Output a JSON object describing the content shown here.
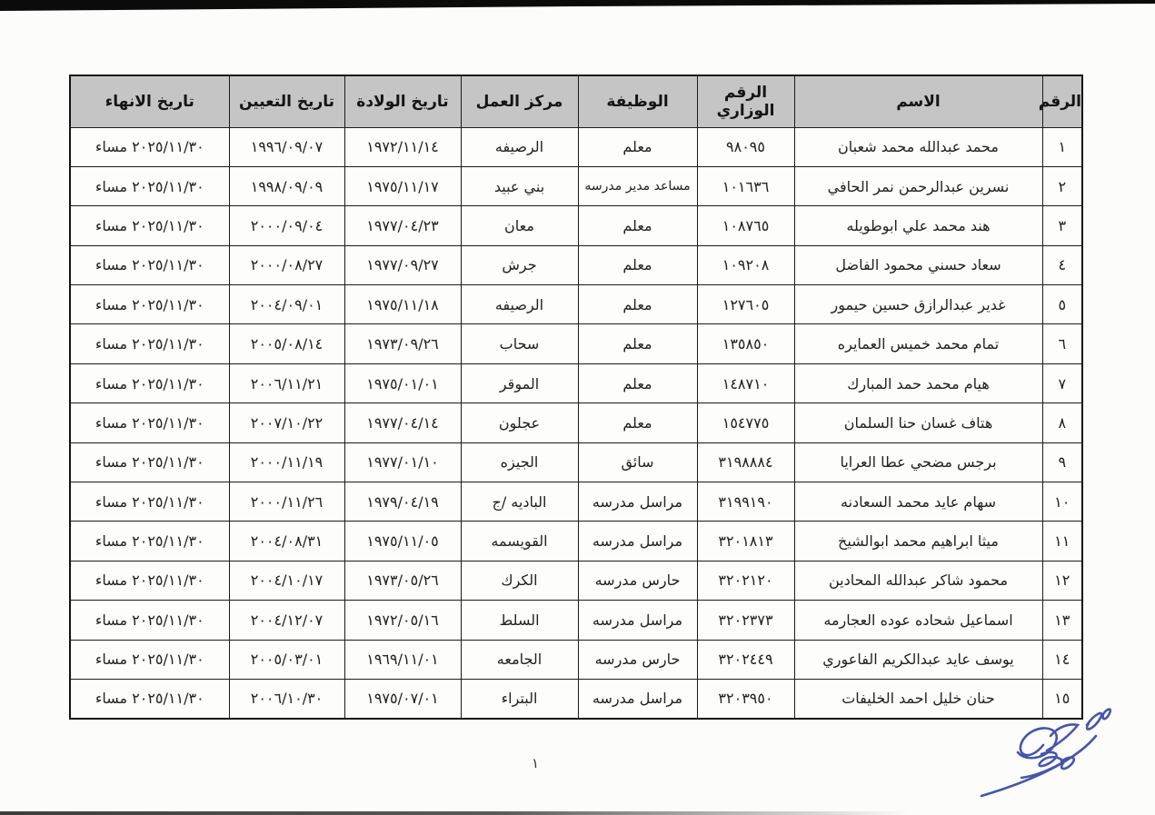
{
  "document": {
    "language": "ar",
    "direction": "rtl",
    "page_number": "١"
  },
  "colors": {
    "header_bg": "#c5c5c5",
    "border": "#1b1b1b",
    "page_bg": "#fcfcfa",
    "signature_ink": "#3747a5",
    "scan_edge": "#0b0b0b"
  },
  "table": {
    "columns": [
      {
        "key": "seq",
        "label": "الرقم"
      },
      {
        "key": "name",
        "label": "الاسم"
      },
      {
        "key": "ministry_number",
        "label": "الرقم الوزاري"
      },
      {
        "key": "job",
        "label": "الوظيفة"
      },
      {
        "key": "work_center",
        "label": "مركز العمل"
      },
      {
        "key": "birth_date",
        "label": "تاريخ الولادة"
      },
      {
        "key": "hire_date",
        "label": "تاريخ التعيين"
      },
      {
        "key": "end_date",
        "label": "تاريخ الانهاء"
      }
    ],
    "rows": [
      {
        "seq": "١",
        "name": "محمد عبدالله محمد شعبان",
        "ministry_number": "٩٨٠٩٥",
        "job": "معلم",
        "work_center": "الرصيفه",
        "birth_date": "١٩٧٢/١١/١٤",
        "hire_date": "١٩٩٦/٠٩/٠٧",
        "end_date": "٢٠٢٥/١١/٣٠ مساء"
      },
      {
        "seq": "٢",
        "name": "نسرين عبدالرحمن نمر الحافي",
        "ministry_number": "١٠١٦٣٦",
        "job": "مساعد مدير مدرسه",
        "work_center": "بني عبيد",
        "birth_date": "١٩٧٥/١١/١٧",
        "hire_date": "١٩٩٨/٠٩/٠٩",
        "end_date": "٢٠٢٥/١١/٣٠ مساء"
      },
      {
        "seq": "٣",
        "name": "هند محمد علي ابوطويله",
        "ministry_number": "١٠٨٧٦٥",
        "job": "معلم",
        "work_center": "معان",
        "birth_date": "١٩٧٧/٠٤/٢٣",
        "hire_date": "٢٠٠٠/٠٩/٠٤",
        "end_date": "٢٠٢٥/١١/٣٠ مساء"
      },
      {
        "seq": "٤",
        "name": "سعاد حسني محمود الفاضل",
        "ministry_number": "١٠٩٢٠٨",
        "job": "معلم",
        "work_center": "جرش",
        "birth_date": "١٩٧٧/٠٩/٢٧",
        "hire_date": "٢٠٠٠/٠٨/٢٧",
        "end_date": "٢٠٢٥/١١/٣٠ مساء"
      },
      {
        "seq": "٥",
        "name": "غدير عبدالرازق حسين حيمور",
        "ministry_number": "١٢٧٦٠٥",
        "job": "معلم",
        "work_center": "الرصيفه",
        "birth_date": "١٩٧٥/١١/١٨",
        "hire_date": "٢٠٠٤/٠٩/٠١",
        "end_date": "٢٠٢٥/١١/٣٠ مساء"
      },
      {
        "seq": "٦",
        "name": "تمام محمد خميس العمايره",
        "ministry_number": "١٣٥٨٥٠",
        "job": "معلم",
        "work_center": "سحاب",
        "birth_date": "١٩٧٣/٠٩/٢٦",
        "hire_date": "٢٠٠٥/٠٨/١٤",
        "end_date": "٢٠٢٥/١١/٣٠ مساء"
      },
      {
        "seq": "٧",
        "name": "هيام محمد حمد المبارك",
        "ministry_number": "١٤٨٧١٠",
        "job": "معلم",
        "work_center": "الموقر",
        "birth_date": "١٩٧٥/٠١/٠١",
        "hire_date": "٢٠٠٦/١١/٢١",
        "end_date": "٢٠٢٥/١١/٣٠ مساء"
      },
      {
        "seq": "٨",
        "name": "هتاف غسان حنا السلمان",
        "ministry_number": "١٥٤٧٧٥",
        "job": "معلم",
        "work_center": "عجلون",
        "birth_date": "١٩٧٧/٠٤/١٤",
        "hire_date": "٢٠٠٧/١٠/٢٢",
        "end_date": "٢٠٢٥/١١/٣٠ مساء"
      },
      {
        "seq": "٩",
        "name": "برجس مضحي عطا العرايا",
        "ministry_number": "٣١٩٨٨٨٤",
        "job": "سائق",
        "work_center": "الجيزه",
        "birth_date": "١٩٧٧/٠١/١٠",
        "hire_date": "٢٠٠٠/١١/١٩",
        "end_date": "٢٠٢٥/١١/٣٠ مساء"
      },
      {
        "seq": "١٠",
        "name": "سهام عايد محمد السعادنه",
        "ministry_number": "٣١٩٩١٩٠",
        "job": "مراسل مدرسه",
        "work_center": "الباديه /ج",
        "birth_date": "١٩٧٩/٠٤/١٩",
        "hire_date": "٢٠٠٠/١١/٢٦",
        "end_date": "٢٠٢٥/١١/٣٠ مساء"
      },
      {
        "seq": "١١",
        "name": "ميثا ابراهيم محمد ابوالشيخ",
        "ministry_number": "٣٢٠١٨١٣",
        "job": "مراسل مدرسه",
        "work_center": "القويسمه",
        "birth_date": "١٩٧٥/١١/٠٥",
        "hire_date": "٢٠٠٤/٠٨/٣١",
        "end_date": "٢٠٢٥/١١/٣٠ مساء"
      },
      {
        "seq": "١٢",
        "name": "محمود شاكر عبدالله المحادين",
        "ministry_number": "٣٢٠٢١٢٠",
        "job": "حارس مدرسه",
        "work_center": "الكرك",
        "birth_date": "١٩٧٣/٠٥/٢٦",
        "hire_date": "٢٠٠٤/١٠/١٧",
        "end_date": "٢٠٢٥/١١/٣٠ مساء"
      },
      {
        "seq": "١٣",
        "name": "اسماعيل شحاده عوده العجارمه",
        "ministry_number": "٣٢٠٢٣٧٣",
        "job": "مراسل مدرسه",
        "work_center": "السلط",
        "birth_date": "١٩٧٢/٠٥/١٦",
        "hire_date": "٢٠٠٤/١٢/٠٧",
        "end_date": "٢٠٢٥/١١/٣٠ مساء"
      },
      {
        "seq": "١٤",
        "name": "يوسف عايد عبدالكريم الفاعوري",
        "ministry_number": "٣٢٠٢٤٤٩",
        "job": "حارس مدرسه",
        "work_center": "الجامعه",
        "birth_date": "١٩٦٩/١١/٠١",
        "hire_date": "٢٠٠٥/٠٣/٠١",
        "end_date": "٢٠٢٥/١١/٣٠ مساء"
      },
      {
        "seq": "١٥",
        "name": "حنان خليل احمد الخليفات",
        "ministry_number": "٣٢٠٣٩٥٠",
        "job": "مراسل مدرسه",
        "work_center": "البتراء",
        "birth_date": "١٩٧٥/٠٧/٠١",
        "hire_date": "٢٠٠٦/١٠/٣٠",
        "end_date": "٢٠٢٥/١١/٣٠ مساء"
      }
    ]
  }
}
